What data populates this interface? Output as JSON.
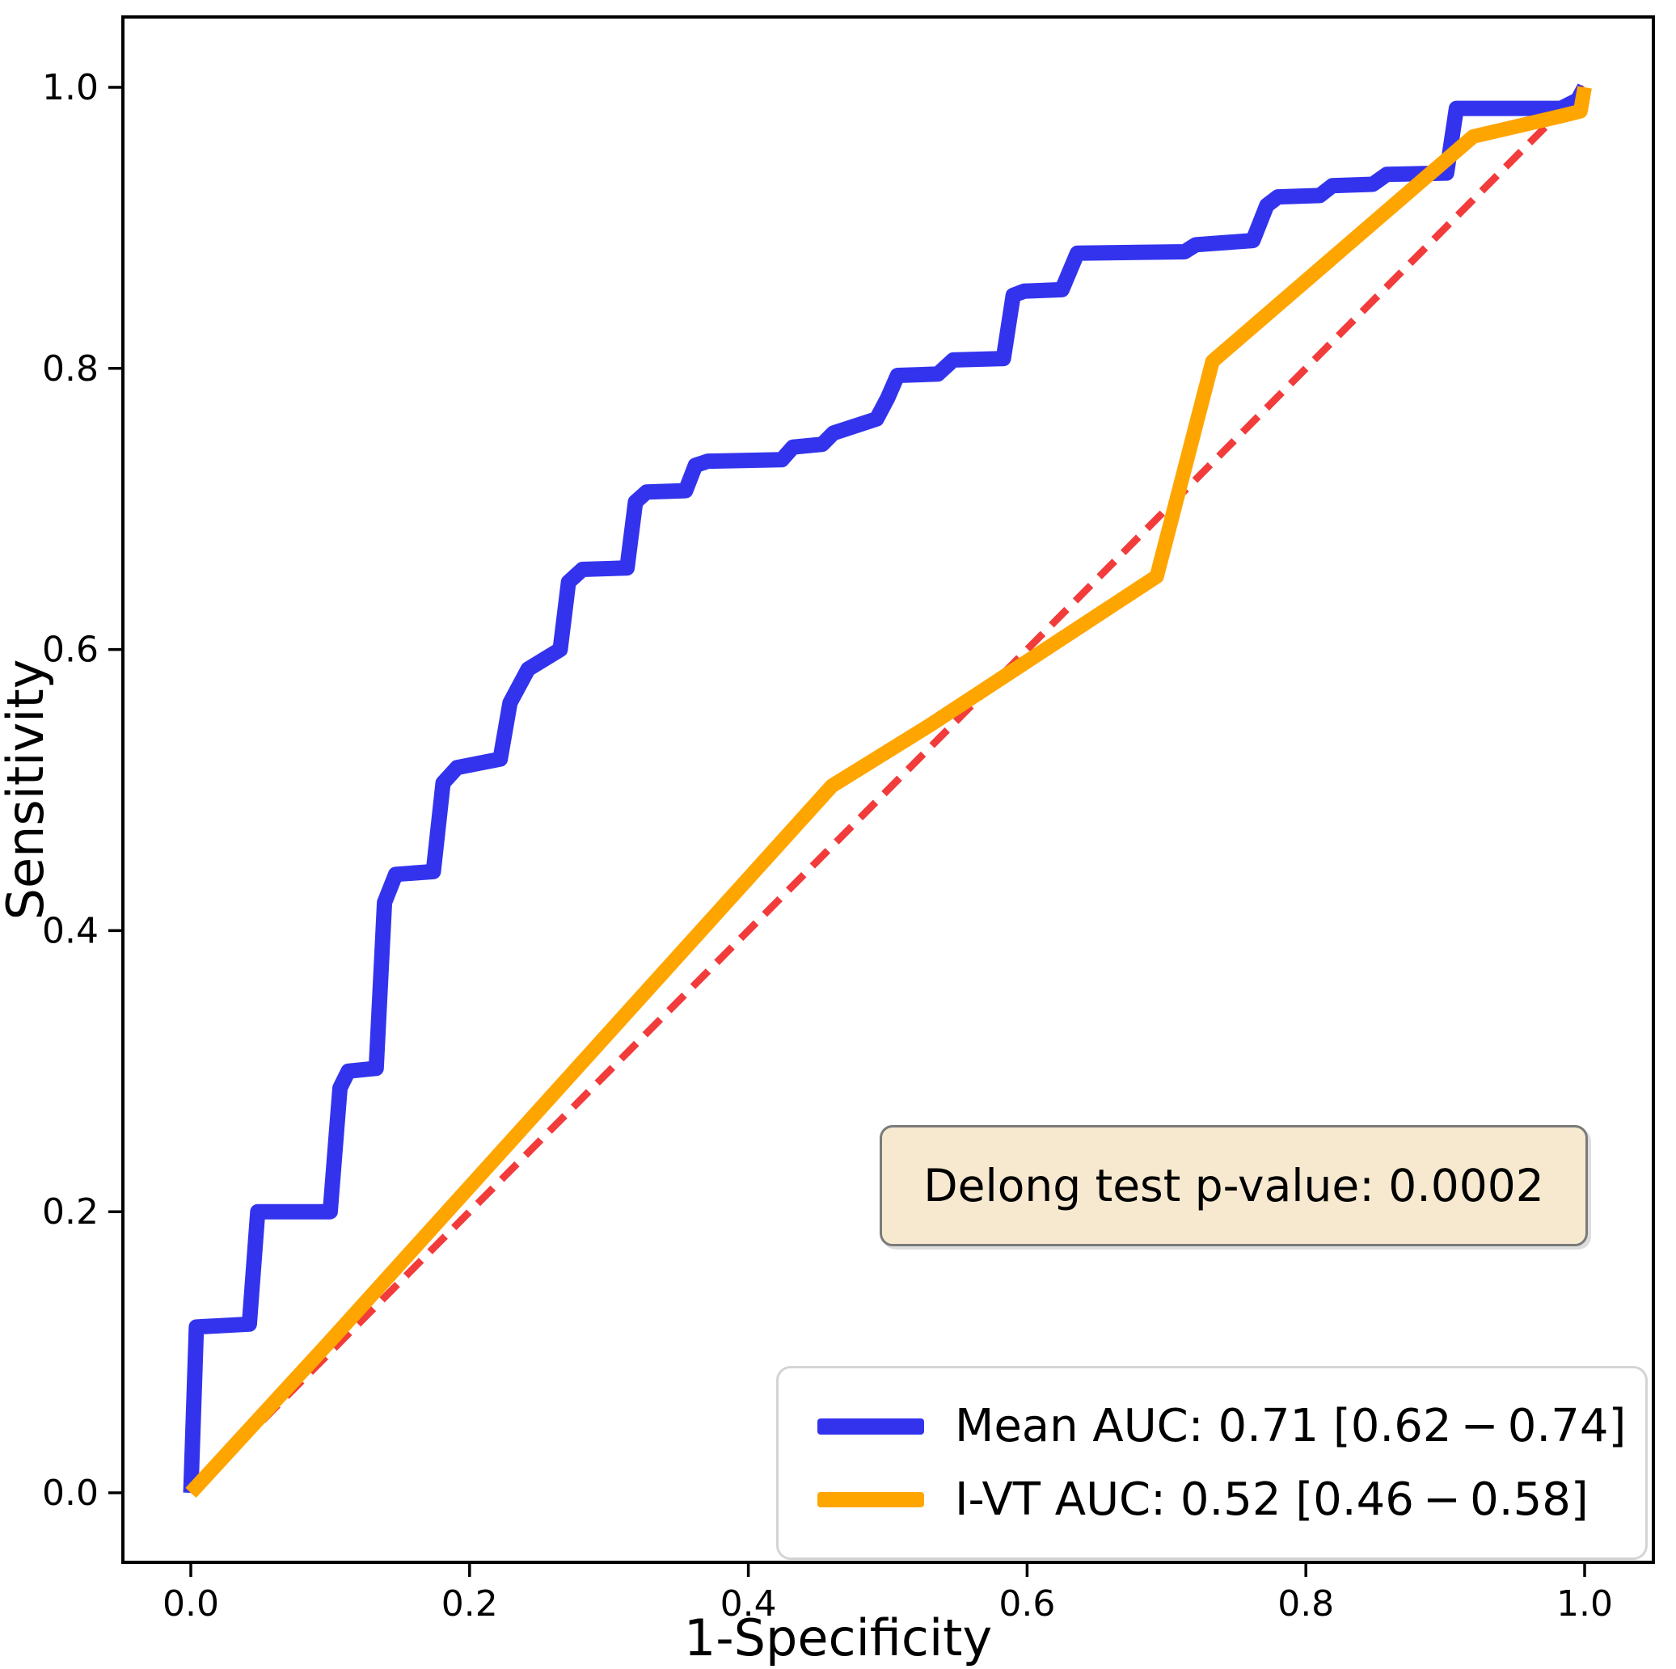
{
  "figure": {
    "background": "#ffffff",
    "xlabel": "1-Specificity",
    "ylabel": "Sensitivity",
    "annotation": {
      "text": "Delong test p-value: 0.0002",
      "bg_color": "#f6e9cf",
      "border_color": "#7a7a7a"
    },
    "legend": {
      "position": "lower right",
      "entries": [
        {
          "label": "Mean AUC: 0.71 [0.62 − 0.74]",
          "color": "#3333ee",
          "thickness": 20
        },
        {
          "label": "I-VT AUC: 0.52 [0.46 − 0.58]",
          "color": "#ffa500",
          "thickness": 19
        }
      ]
    }
  },
  "chart_data": {
    "type": "line",
    "title": "",
    "xlabel": "1-Specificity",
    "ylabel": "Sensitivity",
    "xlim": [
      -0.05,
      1.05
    ],
    "ylim": [
      -0.05,
      1.05
    ],
    "grid": false,
    "legend_position": "lower right",
    "x_ticks": [
      0.0,
      0.2,
      0.4,
      0.6,
      0.8,
      1.0
    ],
    "y_ticks": [
      0.0,
      0.2,
      0.4,
      0.6,
      0.8,
      1.0
    ],
    "x_tick_labels": [
      "0.0",
      "0.2",
      "0.4",
      "0.6",
      "0.8",
      "1.0"
    ],
    "y_tick_labels": [
      "0.0",
      "0.2",
      "0.4",
      "0.6",
      "0.8",
      "1.0"
    ],
    "series": [
      {
        "name": "chance-diagonal",
        "color": "#f23b3b",
        "style": "dashed",
        "width": 9,
        "points": [
          [
            0.0,
            0.0
          ],
          [
            1.0,
            1.0
          ]
        ]
      },
      {
        "name": "mean-roc",
        "label": "Mean AUC: 0.71 [0.62 − 0.74]",
        "auc": 0.71,
        "auc_ci": [
          0.62,
          0.74
        ],
        "color": "#3333ee",
        "style": "solid",
        "width": 19,
        "points": [
          [
            0.0,
            0.0
          ],
          [
            0.004,
            0.118
          ],
          [
            0.042,
            0.12
          ],
          [
            0.048,
            0.2
          ],
          [
            0.1,
            0.2
          ],
          [
            0.107,
            0.288
          ],
          [
            0.113,
            0.3
          ],
          [
            0.133,
            0.302
          ],
          [
            0.139,
            0.42
          ],
          [
            0.147,
            0.44
          ],
          [
            0.174,
            0.442
          ],
          [
            0.181,
            0.505
          ],
          [
            0.191,
            0.516
          ],
          [
            0.222,
            0.522
          ],
          [
            0.229,
            0.562
          ],
          [
            0.242,
            0.586
          ],
          [
            0.265,
            0.6
          ],
          [
            0.271,
            0.648
          ],
          [
            0.281,
            0.657
          ],
          [
            0.313,
            0.658
          ],
          [
            0.319,
            0.705
          ],
          [
            0.327,
            0.712
          ],
          [
            0.355,
            0.713
          ],
          [
            0.362,
            0.731
          ],
          [
            0.371,
            0.734
          ],
          [
            0.424,
            0.735
          ],
          [
            0.432,
            0.744
          ],
          [
            0.453,
            0.746
          ],
          [
            0.461,
            0.754
          ],
          [
            0.492,
            0.764
          ],
          [
            0.5,
            0.779
          ],
          [
            0.507,
            0.795
          ],
          [
            0.536,
            0.796
          ],
          [
            0.547,
            0.806
          ],
          [
            0.583,
            0.807
          ],
          [
            0.59,
            0.852
          ],
          [
            0.598,
            0.855
          ],
          [
            0.625,
            0.856
          ],
          [
            0.636,
            0.882
          ],
          [
            0.713,
            0.883
          ],
          [
            0.721,
            0.888
          ],
          [
            0.762,
            0.891
          ],
          [
            0.772,
            0.916
          ],
          [
            0.78,
            0.922
          ],
          [
            0.81,
            0.923
          ],
          [
            0.819,
            0.93
          ],
          [
            0.848,
            0.931
          ],
          [
            0.858,
            0.938
          ],
          [
            0.901,
            0.939
          ],
          [
            0.908,
            0.985
          ],
          [
            0.983,
            0.985
          ],
          [
            0.995,
            0.991
          ],
          [
            1.0,
            1.0
          ]
        ]
      },
      {
        "name": "ivt-roc",
        "label": "I-VT AUC: 0.52 [0.46 − 0.58]",
        "auc": 0.52,
        "auc_ci": [
          0.46,
          0.58
        ],
        "color": "#ffa500",
        "style": "solid",
        "width": 18,
        "points": [
          [
            0.0,
            0.0
          ],
          [
            0.1,
            0.108
          ],
          [
            0.46,
            0.503
          ],
          [
            0.53,
            0.546
          ],
          [
            0.693,
            0.652
          ],
          [
            0.733,
            0.805
          ],
          [
            0.92,
            0.965
          ],
          [
            0.985,
            0.98
          ],
          [
            0.997,
            0.983
          ],
          [
            1.0,
            1.0
          ]
        ]
      }
    ],
    "annotation": "Delong test p-value: 0.0002"
  }
}
